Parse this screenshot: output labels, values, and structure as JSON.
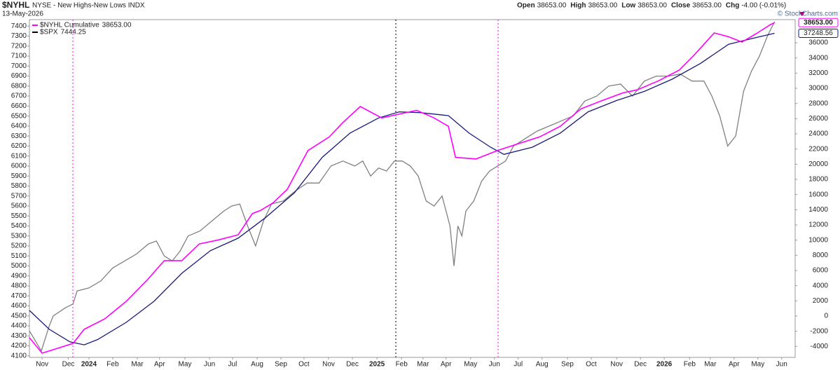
{
  "chart_data": {
    "type": "line",
    "title": "$NYHL",
    "subtitle": "NYSE - New Highs-New Lows INDX",
    "date": "13-May-2026",
    "ohlc": [
      {
        "label": "Open",
        "value": "38653.00"
      },
      {
        "label": "High",
        "value": "38653.00"
      },
      {
        "label": "Low",
        "value": "38653.00"
      },
      {
        "label": "Close",
        "value": "38653.00"
      },
      {
        "label": "Chg",
        "value": "-4.00 (-0.01%)"
      }
    ],
    "credit": "© StockCharts.com",
    "xlim": [
      0,
      965
    ],
    "xticks": [
      {
        "value": 16,
        "label": "Nov"
      },
      {
        "value": 49,
        "label": "Dec"
      },
      {
        "value": 75,
        "label": "2024"
      },
      {
        "value": 105,
        "label": "Feb"
      },
      {
        "value": 136,
        "label": "Mar"
      },
      {
        "value": 164,
        "label": "Apr"
      },
      {
        "value": 196,
        "label": "May"
      },
      {
        "value": 227,
        "label": "Jun"
      },
      {
        "value": 256,
        "label": "Jul"
      },
      {
        "value": 287,
        "label": "Aug"
      },
      {
        "value": 317,
        "label": "Sep"
      },
      {
        "value": 346,
        "label": "Oct"
      },
      {
        "value": 377,
        "label": "Nov"
      },
      {
        "value": 407,
        "label": "Dec"
      },
      {
        "value": 438,
        "label": "2025"
      },
      {
        "value": 469,
        "label": "Feb"
      },
      {
        "value": 496,
        "label": "Mar"
      },
      {
        "value": 525,
        "label": "Apr"
      },
      {
        "value": 556,
        "label": "May"
      },
      {
        "value": 586,
        "label": "Jun"
      },
      {
        "value": 616,
        "label": "Jul"
      },
      {
        "value": 646,
        "label": "Aug"
      },
      {
        "value": 678,
        "label": "Sep"
      },
      {
        "value": 708,
        "label": "Oct"
      },
      {
        "value": 740,
        "label": "Nov"
      },
      {
        "value": 770,
        "label": "Dec"
      },
      {
        "value": 800,
        "label": "2026"
      },
      {
        "value": 832,
        "label": "Feb"
      },
      {
        "value": 858,
        "label": "Mar"
      },
      {
        "value": 888,
        "label": "Apr"
      },
      {
        "value": 918,
        "label": "May"
      },
      {
        "value": 948,
        "label": "Jun"
      }
    ],
    "ylim": [
      4085,
      7465
    ],
    "yticks": [
      4100,
      4200,
      4300,
      4400,
      4500,
      4600,
      4700,
      4800,
      4900,
      5000,
      5100,
      5200,
      5300,
      5400,
      5500,
      5600,
      5700,
      5800,
      5900,
      6000,
      6100,
      6200,
      6300,
      6400,
      6500,
      6600,
      6700,
      6800,
      6900,
      7000,
      7100,
      7200,
      7300,
      7400
    ],
    "y2lim": [
      -5450,
      39050
    ],
    "y2ticks": [
      -4000,
      -2000,
      0,
      2000,
      4000,
      6000,
      8000,
      10000,
      12000,
      14000,
      16000,
      18000,
      20000,
      22000,
      24000,
      26000,
      28000,
      30000,
      32000,
      34000,
      36000
    ],
    "series": [
      {
        "name": "$NYHL Cumulative",
        "value_label": "38653.00",
        "end_label": "38653.00",
        "color": "#ff00ff",
        "axis": "y2",
        "x": [
          0,
          16,
          55,
          69,
          95,
          122,
          148,
          170,
          192,
          214,
          237,
          263,
          281,
          291,
          307,
          325,
          351,
          378,
          395,
          417,
          444,
          466,
          488,
          510,
          528,
          537,
          563,
          590,
          616,
          643,
          669,
          695,
          722,
          748,
          766,
          793,
          819,
          837,
          863,
          881,
          898,
          916,
          934,
          939
        ],
        "values": [
          -2860,
          -4900,
          -3600,
          -1750,
          -370,
          1940,
          4700,
          7300,
          7300,
          9500,
          10000,
          10700,
          13500,
          13900,
          14900,
          16700,
          21800,
          23600,
          25500,
          27600,
          26100,
          26600,
          27100,
          26100,
          25000,
          20900,
          20700,
          21800,
          22700,
          23600,
          25000,
          27300,
          28400,
          29400,
          29800,
          31000,
          32400,
          34300,
          37300,
          36800,
          36100,
          37200,
          38400,
          38653
        ]
      },
      {
        "color": "#1a1a7a",
        "axis": "y2",
        "end_label": "37248.56",
        "x": [
          0,
          25,
          51,
          69,
          86,
          122,
          157,
          192,
          228,
          263,
          298,
          334,
          369,
          404,
          440,
          466,
          492,
          528,
          554,
          581,
          598,
          634,
          669,
          704,
          740,
          775,
          810,
          846,
          881,
          916,
          939
        ],
        "values": [
          740,
          -1750,
          -3400,
          -3800,
          -3100,
          -830,
          1940,
          5630,
          8600,
          10250,
          13000,
          16250,
          20900,
          24100,
          26100,
          26900,
          26800,
          26400,
          24100,
          22250,
          21300,
          22250,
          24100,
          26900,
          28400,
          29600,
          31200,
          33300,
          35800,
          36700,
          37248.56
        ]
      },
      {
        "name": "$SPX",
        "value_label": "7444.25",
        "color": "#808080",
        "axis": "y",
        "x": [
          0,
          15,
          25,
          30,
          45,
          55,
          60,
          75,
          90,
          105,
          120,
          135,
          150,
          160,
          170,
          180,
          190,
          200,
          215,
          230,
          245,
          255,
          265,
          275,
          285,
          295,
          305,
          320,
          335,
          350,
          365,
          380,
          395,
          410,
          420,
          430,
          440,
          450,
          460,
          470,
          480,
          490,
          500,
          510,
          520,
          530,
          535,
          540,
          545,
          550,
          560,
          570,
          580,
          590,
          600,
          610,
          620,
          630,
          640,
          655,
          670,
          685,
          700,
          715,
          730,
          745,
          760,
          775,
          790,
          805,
          820,
          835,
          850,
          860,
          870,
          880,
          890,
          900,
          910,
          920,
          930,
          939
        ],
        "values": [
          4350,
          4150,
          4400,
          4500,
          4580,
          4620,
          4750,
          4780,
          4850,
          4980,
          5050,
          5120,
          5220,
          5250,
          5100,
          5050,
          5150,
          5300,
          5350,
          5450,
          5550,
          5600,
          5620,
          5400,
          5200,
          5450,
          5620,
          5650,
          5750,
          5830,
          5830,
          6000,
          6050,
          6000,
          6050,
          5900,
          5980,
          5950,
          6050,
          6050,
          6000,
          5900,
          5650,
          5600,
          5700,
          5400,
          5000,
          5400,
          5300,
          5550,
          5650,
          5850,
          5950,
          6000,
          6050,
          6200,
          6250,
          6300,
          6350,
          6400,
          6450,
          6500,
          6650,
          6700,
          6800,
          6820,
          6700,
          6850,
          6900,
          6900,
          6920,
          6850,
          6850,
          6700,
          6500,
          6200,
          6300,
          6750,
          6950,
          7100,
          7300,
          7444.25
        ]
      }
    ]
  }
}
